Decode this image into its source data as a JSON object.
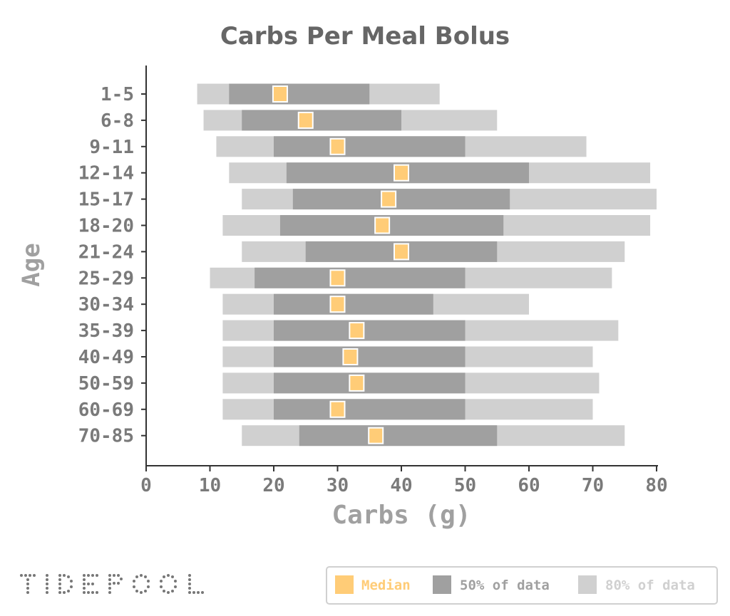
{
  "chart_data": {
    "type": "bar",
    "title": "Carbs Per Meal Bolus",
    "xlabel": "Carbs (g)",
    "ylabel": "Age",
    "xlim": [
      0,
      80
    ],
    "x_ticks": [
      "0",
      "10",
      "20",
      "30",
      "40",
      "50",
      "60",
      "70",
      "80"
    ],
    "grid": false,
    "legend_position": "bottom-right",
    "categories": [
      "1-5",
      "6-8",
      "9-11",
      "12-14",
      "15-17",
      "18-20",
      "21-24",
      "25-29",
      "30-34",
      "35-39",
      "40-49",
      "50-59",
      "60-69",
      "70-85"
    ],
    "series": [
      {
        "name": "80% of data",
        "color": "#d0d0d0",
        "ranges": [
          [
            8,
            46
          ],
          [
            9,
            55
          ],
          [
            11,
            69
          ],
          [
            13,
            79
          ],
          [
            15,
            80
          ],
          [
            12,
            79
          ],
          [
            15,
            75
          ],
          [
            10,
            73
          ],
          [
            12,
            60
          ],
          [
            12,
            74
          ],
          [
            12,
            70
          ],
          [
            12,
            71
          ],
          [
            12,
            70
          ],
          [
            15,
            75
          ]
        ]
      },
      {
        "name": "50% of data",
        "color": "#a0a0a0",
        "ranges": [
          [
            13,
            35
          ],
          [
            15,
            40
          ],
          [
            20,
            50
          ],
          [
            22,
            60
          ],
          [
            23,
            57
          ],
          [
            21,
            56
          ],
          [
            25,
            55
          ],
          [
            17,
            50
          ],
          [
            20,
            45
          ],
          [
            20,
            50
          ],
          [
            20,
            50
          ],
          [
            20,
            50
          ],
          [
            20,
            50
          ],
          [
            24,
            55
          ]
        ]
      },
      {
        "name": "Median",
        "color": "#ffcc77",
        "values": [
          21,
          25,
          30,
          40,
          38,
          37,
          40,
          30,
          30,
          33,
          32,
          33,
          30,
          36
        ]
      }
    ]
  },
  "logo": {
    "text": "TIDEPOOL"
  }
}
